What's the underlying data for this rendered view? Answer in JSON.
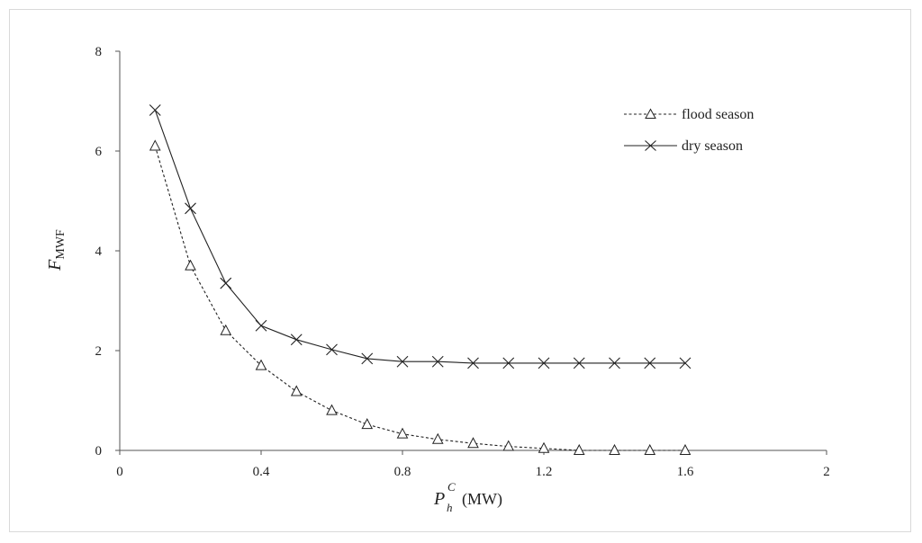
{
  "chart_data": {
    "type": "line",
    "xlabel": {
      "main": "P",
      "sub": "h",
      "sup": "C",
      "unit": "(MW)"
    },
    "ylabel": {
      "main": "F",
      "sub": "MWF"
    },
    "xlim": [
      0,
      2
    ],
    "ylim": [
      0,
      8
    ],
    "xticks": [
      0,
      0.4,
      0.8,
      1.2,
      1.6,
      2
    ],
    "xtick_labels": [
      "0",
      "0.4",
      "0.8",
      "1.2",
      "1.6",
      "2"
    ],
    "yticks": [
      0,
      2,
      4,
      6,
      8
    ],
    "ytick_labels": [
      "0",
      "2",
      "4",
      "6",
      "8"
    ],
    "grid": false,
    "legend_position": "top-right",
    "series": [
      {
        "name": "flood season",
        "marker": "triangle",
        "line_style": "dashed",
        "color": "#222222",
        "x": [
          0.1,
          0.2,
          0.3,
          0.4,
          0.5,
          0.6,
          0.7,
          0.8,
          0.9,
          1.0,
          1.1,
          1.2,
          1.3,
          1.4,
          1.5,
          1.6
        ],
        "y": [
          6.1,
          3.7,
          2.4,
          1.7,
          1.18,
          0.8,
          0.52,
          0.33,
          0.22,
          0.14,
          0.08,
          0.04,
          0.0,
          0.0,
          0.0,
          0.0
        ]
      },
      {
        "name": "dry season",
        "marker": "x",
        "line_style": "solid",
        "color": "#222222",
        "x": [
          0.1,
          0.2,
          0.3,
          0.4,
          0.5,
          0.6,
          0.7,
          0.8,
          0.9,
          1.0,
          1.1,
          1.2,
          1.3,
          1.4,
          1.5,
          1.6
        ],
        "y": [
          6.82,
          4.85,
          3.35,
          2.5,
          2.22,
          2.02,
          1.84,
          1.78,
          1.78,
          1.75,
          1.75,
          1.75,
          1.75,
          1.75,
          1.75,
          1.75
        ]
      }
    ]
  }
}
